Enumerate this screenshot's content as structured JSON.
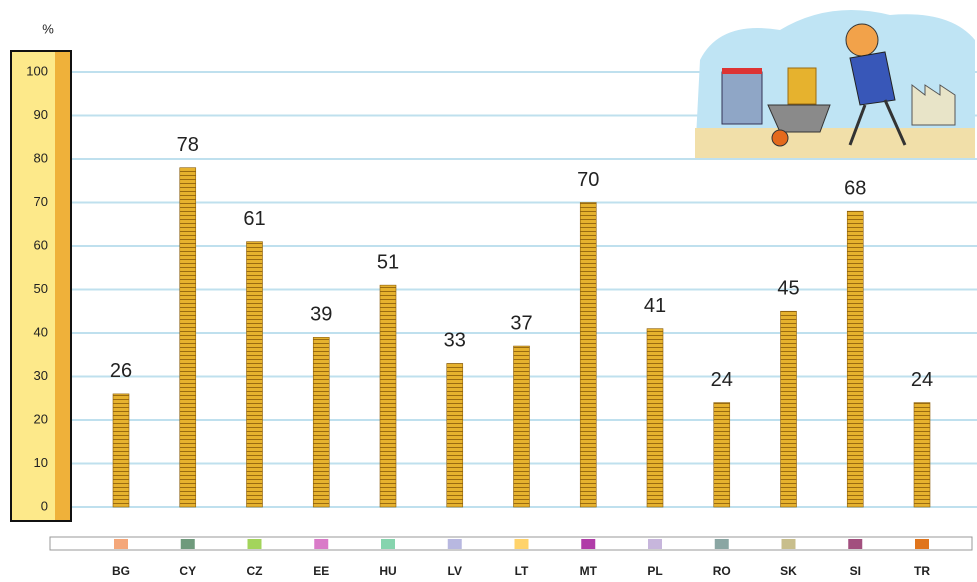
{
  "chart_data": {
    "type": "bar",
    "y_label": "%",
    "categories": [
      "BG",
      "CY",
      "CZ",
      "EE",
      "HU",
      "LV",
      "LT",
      "MT",
      "PL",
      "RO",
      "SK",
      "SI",
      "TR"
    ],
    "values": [
      26,
      78,
      61,
      39,
      51,
      33,
      37,
      70,
      41,
      24,
      45,
      68,
      24
    ],
    "colors": [
      "#f4a77a",
      "#6f9a7c",
      "#a3d45b",
      "#d97bc8",
      "#86d4ae",
      "#b8b8e0",
      "#ffd36b",
      "#b03da8",
      "#c7b6dc",
      "#8aa6a3",
      "#c8be8c",
      "#a24f7e",
      "#e0751c"
    ],
    "bar_color": "#d9a11f",
    "ylim": [
      0,
      100
    ],
    "yticks": [
      0,
      10,
      20,
      30,
      40,
      50,
      60,
      70,
      80,
      90,
      100
    ],
    "grid": true
  }
}
